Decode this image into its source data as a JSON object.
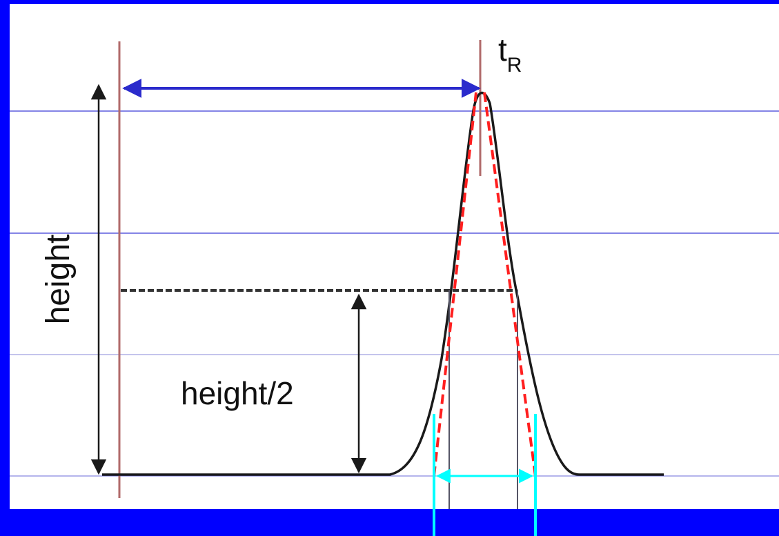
{
  "labels": {
    "height": "height",
    "half_height": "height/2",
    "retention_time": "t",
    "retention_time_subscript": "R"
  },
  "colors": {
    "frame": "#0000ff",
    "canvas": "#ffffff",
    "curve": "#1a1a1a",
    "tangent": "#ff1f1f",
    "retention_marker": "#b06a6a",
    "retention_arrow": "#2b2bcc",
    "base_width": "#00ffff",
    "guide_lines": "#3a3ad6"
  }
}
